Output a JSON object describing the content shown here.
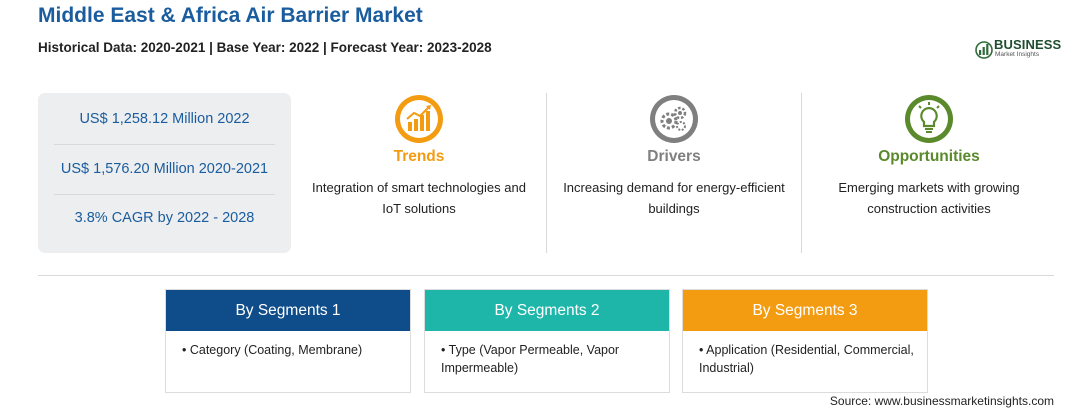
{
  "header": {
    "title": "Middle East & Africa Air Barrier Market",
    "subtitle": "Historical Data: 2020-2021 | Base Year: 2022 | Forecast Year: 2023-2028"
  },
  "logo": {
    "word": "BUSINESS",
    "sub": "Market Insights"
  },
  "stats": [
    "US$ 1,258.12 Million 2022",
    "US$ 1,576.20 Million 2020-2021",
    "3.8% CAGR by 2022 - 2028"
  ],
  "columns": [
    {
      "title": "Trends",
      "text": "Integration of smart technologies and IoT solutions",
      "color": "#f39c12",
      "icon": "trend-chart-icon"
    },
    {
      "title": "Drivers",
      "text": "Increasing demand for energy-efficient buildings",
      "color": "#7f7f7f",
      "icon": "gears-icon"
    },
    {
      "title": "Opportunities",
      "text": "Emerging markets with growing construction activities",
      "color": "#5a8a2b",
      "icon": "lightbulb-icon"
    }
  ],
  "segments": [
    {
      "title": "By Segments 1",
      "color": "#0f4c8a",
      "text": "• Category (Coating, Membrane)"
    },
    {
      "title": "By Segments 2",
      "color": "#1fb6aa",
      "text": "• Type (Vapor Permeable, Vapor Impermeable)"
    },
    {
      "title": "By Segments 3",
      "color": "#f39c12",
      "text": "• Application (Residential, Commercial, Industrial)"
    }
  ],
  "source": "Source: www.businessmarketinsights.com"
}
